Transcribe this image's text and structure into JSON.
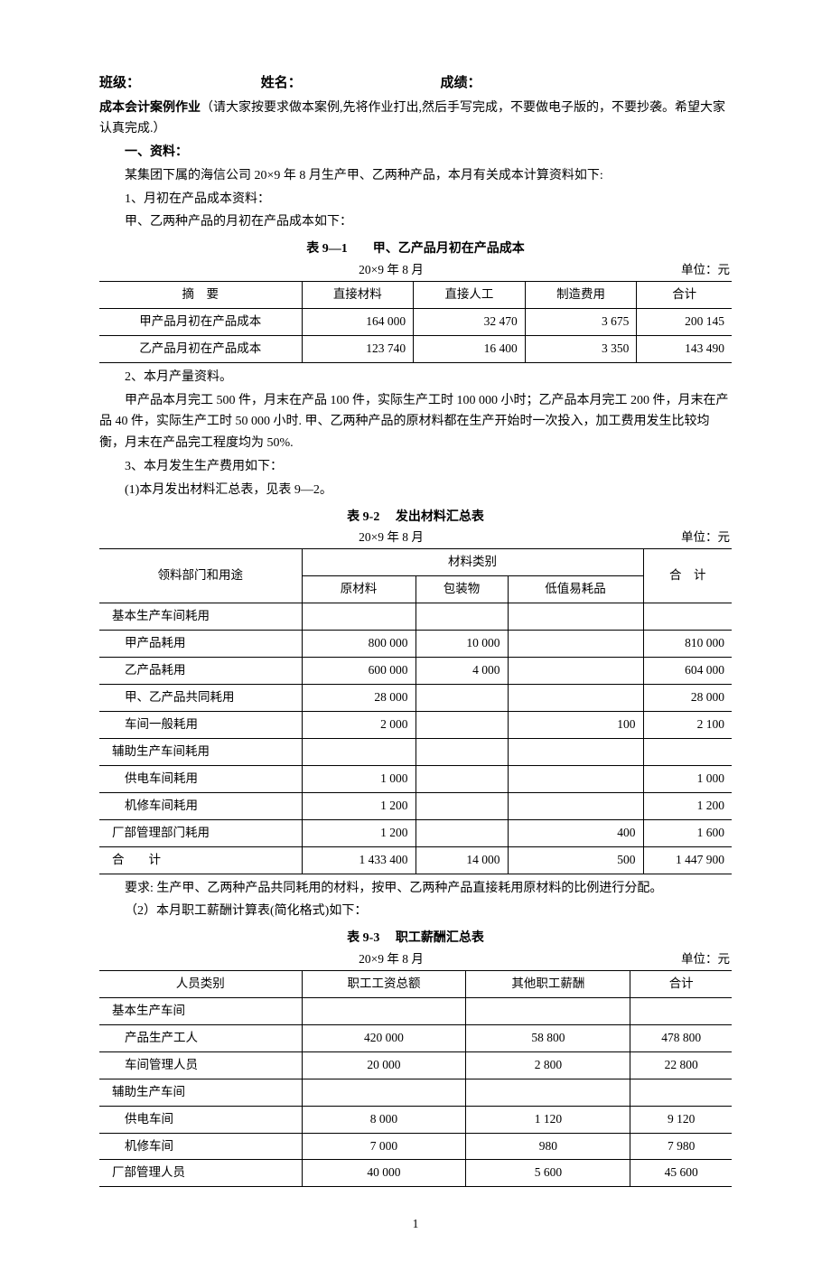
{
  "header": {
    "class_lbl": "班级：",
    "name_lbl": "姓名：",
    "score_lbl": "成绩："
  },
  "title": "成本会计案例作业",
  "title_note": "（请大家按要求做本案例,先将作业打出,然后手写完成，不要做电子版的，不要抄袭。希望大家认真完成.）",
  "s1_head": "一、资料：",
  "s1_p1": "某集团下属的海信公司 20×9 年 8 月生产甲、乙两种产品，本月有关成本计算资料如下:",
  "s1_p2": "1、月初在产品成本资料：",
  "s1_p3": "甲、乙两种产品的月初在产品成本如下：",
  "t1": {
    "title": "表 9—1　　甲、乙产品月初在产品成本",
    "date": "20×9 年 8 月",
    "unit": "单位：元",
    "cols": [
      "摘　要",
      "直接材料",
      "直接人工",
      "制造费用",
      "合计"
    ],
    "rows": [
      [
        "甲产品月初在产品成本",
        "164 000",
        "32 470",
        "3 675",
        "200 145"
      ],
      [
        "乙产品月初在产品成本",
        "123 740",
        "16 400",
        "3 350",
        "143 490"
      ]
    ]
  },
  "s2_p1": "2、本月产量资料。",
  "s2_p2": "甲产品本月完工 500 件，月末在产品 100 件，实际生产工时 100 000 小时；乙产品本月完工 200 件，月末在产品 40 件，实际生产工时 50 000 小时. 甲、乙两种产品的原材料都在生产开始时一次投入，加工费用发生比较均衡，月末在产品完工程度均为 50%.",
  "s3_p1": "3、本月发生生产费用如下：",
  "s3_p2": "(1)本月发出材料汇总表，见表 9—2。",
  "t2": {
    "title": "表 9-2　 发出材料汇总表",
    "date": "20×9 年 8 月",
    "unit": "单位：元",
    "head1": "领料部门和用途",
    "head2": "材料类别",
    "head3": "合　计",
    "cols": [
      "原材料",
      "包装物",
      "低值易耗品"
    ],
    "rows": [
      [
        "基本生产车间耗用",
        "",
        "",
        "",
        ""
      ],
      [
        "甲产品耗用",
        "800 000",
        "10 000",
        "",
        "810 000"
      ],
      [
        "乙产品耗用",
        "600 000",
        "4 000",
        "",
        "604 000"
      ],
      [
        "甲、乙产品共同耗用",
        "28 000",
        "",
        "",
        "28 000"
      ],
      [
        "车间一般耗用",
        "2 000",
        "",
        "100",
        "2 100"
      ],
      [
        "辅助生产车间耗用",
        "",
        "",
        "",
        ""
      ],
      [
        "供电车间耗用",
        "1 000",
        "",
        "",
        "1 000"
      ],
      [
        "机修车间耗用",
        "1 200",
        "",
        "",
        "1 200"
      ],
      [
        "厂部管理部门耗用",
        "1 200",
        "",
        "400",
        "1 600"
      ],
      [
        "合　　计",
        "1 433 400",
        "14 000",
        "500",
        "1 447 900"
      ]
    ],
    "indent_rows": [
      1,
      2,
      3,
      4,
      6,
      7
    ]
  },
  "s4_p1": "要求: 生产甲、乙两种产品共同耗用的材料，按甲、乙两种产品直接耗用原材料的比例进行分配。",
  "s4_p2": "（2）本月职工薪酬计算表(简化格式)如下：",
  "t3": {
    "title": "表 9-3　 职工薪酬汇总表",
    "date": "20×9 年 8 月",
    "unit": "单位：元",
    "cols": [
      "人员类别",
      "职工工资总额",
      "其他职工薪酬",
      "合计"
    ],
    "rows": [
      [
        "基本生产车间",
        "",
        "",
        ""
      ],
      [
        "产品生产工人",
        "420 000",
        "58 800",
        "478 800"
      ],
      [
        "车间管理人员",
        "20 000",
        "2 800",
        "22 800"
      ],
      [
        "辅助生产车间",
        "",
        "",
        ""
      ],
      [
        "供电车间",
        "8 000",
        "1 120",
        "9 120"
      ],
      [
        "机修车间",
        "7 000",
        "980",
        "7 980"
      ],
      [
        "厂部管理人员",
        "40 000",
        "5 600",
        "45 600"
      ]
    ],
    "indent_rows": [
      1,
      2,
      4,
      5
    ]
  },
  "page_number": "1"
}
